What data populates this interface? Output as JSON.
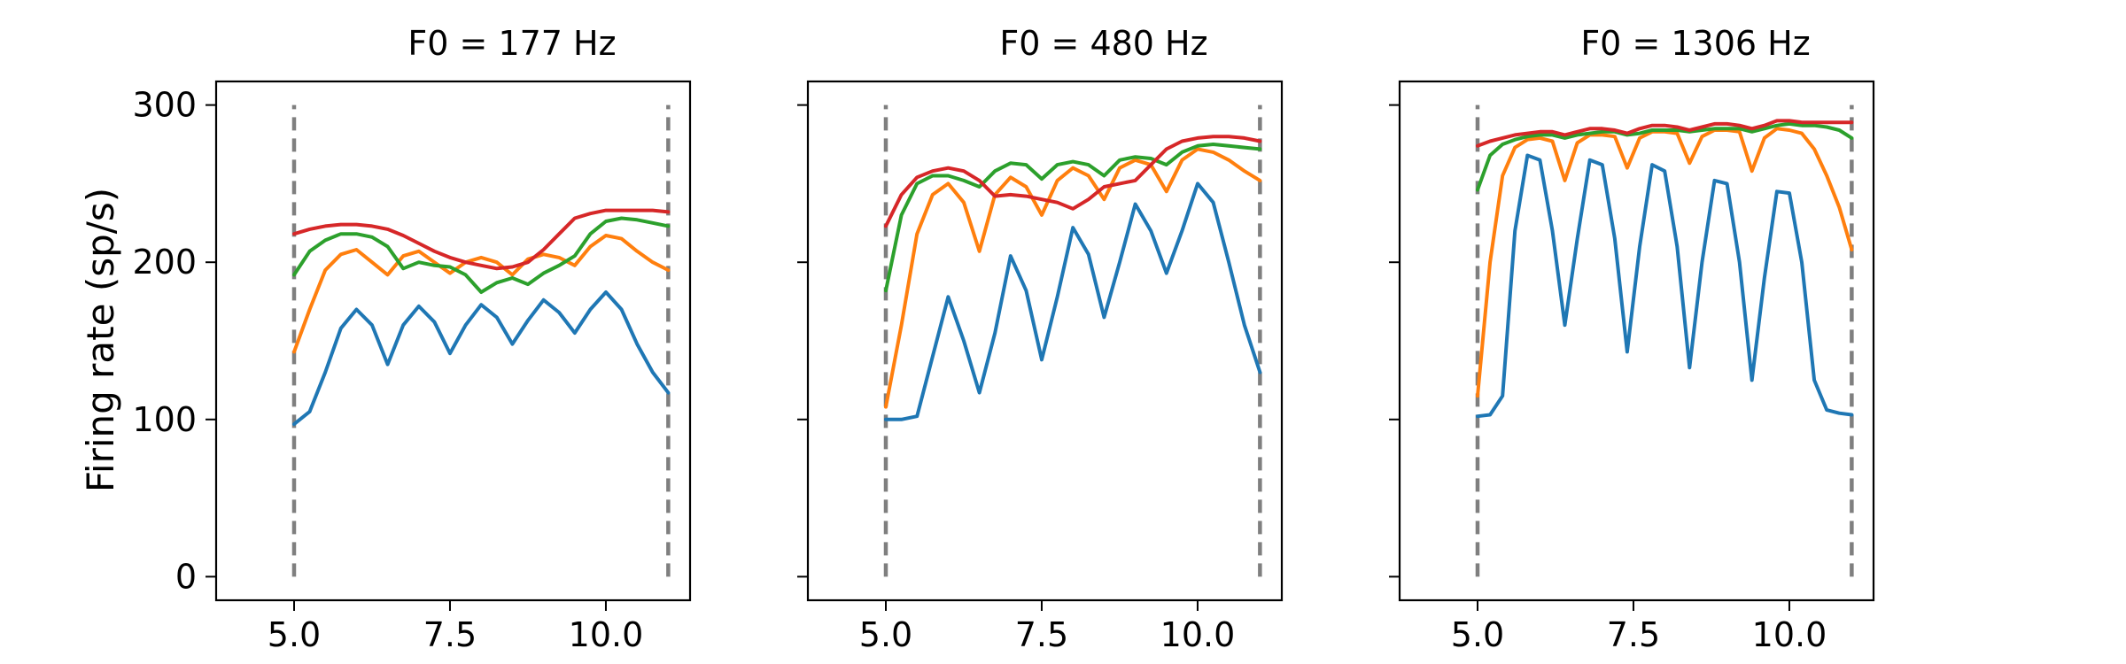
{
  "figure": {
    "ylabel": "Firing rate (sp/s)"
  },
  "chart_data": [
    {
      "type": "line",
      "title": "F0 = 177 Hz",
      "xlabel": "",
      "ylabel": "Firing rate (sp/s)",
      "xlim": [
        3.75,
        11.35
      ],
      "ylim": [
        -15,
        315
      ],
      "xticks": [
        5.0,
        7.5,
        10.0
      ],
      "xtick_labels": [
        "5.0",
        "7.5",
        "10.0"
      ],
      "yticks": [
        0,
        100,
        200,
        300
      ],
      "ytick_labels": [
        "0",
        "100",
        "200",
        "300"
      ],
      "show_ytick_labels": true,
      "grid": false,
      "vlines": {
        "x": [
          5.0,
          11.0
        ],
        "ymin": 0,
        "ymax": 300,
        "color": "#7f7f7f",
        "style": "dashed"
      },
      "series": [
        {
          "color": "#1f77b4",
          "x": [
            5.0,
            5.25,
            5.5,
            5.75,
            6.0,
            6.25,
            6.5,
            6.75,
            7.0,
            7.25,
            7.5,
            7.75,
            8.0,
            8.25,
            8.5,
            8.75,
            9.0,
            9.25,
            9.5,
            9.75,
            10.0,
            10.25,
            10.5,
            10.75,
            11.0
          ],
          "y": [
            97,
            105,
            130,
            158,
            170,
            160,
            135,
            160,
            172,
            162,
            142,
            160,
            173,
            165,
            148,
            163,
            176,
            168,
            155,
            170,
            181,
            170,
            148,
            130,
            117
          ]
        },
        {
          "color": "#ff7f0e",
          "x": [
            5.0,
            5.25,
            5.5,
            5.75,
            6.0,
            6.25,
            6.5,
            6.75,
            7.0,
            7.25,
            7.5,
            7.75,
            8.0,
            8.25,
            8.5,
            8.75,
            9.0,
            9.25,
            9.5,
            9.75,
            10.0,
            10.25,
            10.5,
            10.75,
            11.0
          ],
          "y": [
            143,
            170,
            195,
            205,
            208,
            200,
            192,
            204,
            207,
            200,
            193,
            200,
            203,
            200,
            192,
            202,
            205,
            203,
            198,
            210,
            217,
            215,
            207,
            200,
            195
          ]
        },
        {
          "color": "#2ca02c",
          "x": [
            5.0,
            5.25,
            5.5,
            5.75,
            6.0,
            6.25,
            6.5,
            6.75,
            7.0,
            7.25,
            7.5,
            7.75,
            8.0,
            8.25,
            8.5,
            8.75,
            9.0,
            9.25,
            9.5,
            9.75,
            10.0,
            10.25,
            10.5,
            10.75,
            11.0
          ],
          "y": [
            192,
            207,
            214,
            218,
            218,
            216,
            210,
            196,
            200,
            198,
            197,
            192,
            181,
            187,
            190,
            186,
            193,
            198,
            204,
            218,
            226,
            228,
            227,
            225,
            223
          ]
        },
        {
          "color": "#d62728",
          "x": [
            5.0,
            5.25,
            5.5,
            5.75,
            6.0,
            6.25,
            6.5,
            6.75,
            7.0,
            7.25,
            7.5,
            7.75,
            8.0,
            8.25,
            8.5,
            8.75,
            9.0,
            9.25,
            9.5,
            9.75,
            10.0,
            10.25,
            10.5,
            10.75,
            11.0
          ],
          "y": [
            218,
            221,
            223,
            224,
            224,
            223,
            221,
            217,
            212,
            207,
            203,
            200,
            198,
            196,
            197,
            200,
            208,
            218,
            228,
            231,
            233,
            233,
            233,
            233,
            232
          ]
        }
      ]
    },
    {
      "type": "line",
      "title": "F0 = 480 Hz",
      "xlabel": "",
      "ylabel": "",
      "xlim": [
        3.75,
        11.35
      ],
      "ylim": [
        -15,
        315
      ],
      "xticks": [
        5.0,
        7.5,
        10.0
      ],
      "xtick_labels": [
        "5.0",
        "7.5",
        "10.0"
      ],
      "yticks": [
        0,
        100,
        200,
        300
      ],
      "ytick_labels": [
        "",
        "",
        "",
        ""
      ],
      "show_ytick_labels": false,
      "grid": false,
      "vlines": {
        "x": [
          5.0,
          11.0
        ],
        "ymin": 0,
        "ymax": 300,
        "color": "#7f7f7f",
        "style": "dashed"
      },
      "series": [
        {
          "color": "#1f77b4",
          "x": [
            5.0,
            5.25,
            5.5,
            5.75,
            6.0,
            6.25,
            6.5,
            6.75,
            7.0,
            7.25,
            7.5,
            7.75,
            8.0,
            8.25,
            8.5,
            8.75,
            9.0,
            9.25,
            9.5,
            9.75,
            10.0,
            10.25,
            10.5,
            10.75,
            11.0
          ],
          "y": [
            100,
            100,
            102,
            140,
            178,
            150,
            117,
            155,
            204,
            182,
            138,
            178,
            222,
            205,
            165,
            200,
            237,
            220,
            193,
            220,
            250,
            238,
            200,
            160,
            130
          ]
        },
        {
          "color": "#ff7f0e",
          "x": [
            5.0,
            5.25,
            5.5,
            5.75,
            6.0,
            6.25,
            6.5,
            6.75,
            7.0,
            7.25,
            7.5,
            7.75,
            8.0,
            8.25,
            8.5,
            8.75,
            9.0,
            9.25,
            9.5,
            9.75,
            10.0,
            10.25,
            10.5,
            10.75,
            11.0
          ],
          "y": [
            108,
            160,
            218,
            243,
            250,
            238,
            207,
            243,
            254,
            248,
            230,
            252,
            260,
            255,
            240,
            260,
            265,
            262,
            245,
            265,
            272,
            270,
            265,
            258,
            252
          ]
        },
        {
          "color": "#2ca02c",
          "x": [
            5.0,
            5.25,
            5.5,
            5.75,
            6.0,
            6.25,
            6.5,
            6.75,
            7.0,
            7.25,
            7.5,
            7.75,
            8.0,
            8.25,
            8.5,
            8.75,
            9.0,
            9.25,
            9.5,
            9.75,
            10.0,
            10.25,
            10.5,
            10.75,
            11.0
          ],
          "y": [
            182,
            230,
            250,
            255,
            255,
            252,
            248,
            258,
            263,
            262,
            253,
            262,
            264,
            262,
            255,
            265,
            267,
            266,
            262,
            270,
            274,
            275,
            274,
            273,
            272
          ]
        },
        {
          "color": "#d62728",
          "x": [
            5.0,
            5.25,
            5.5,
            5.75,
            6.0,
            6.25,
            6.5,
            6.75,
            7.0,
            7.25,
            7.5,
            7.75,
            8.0,
            8.25,
            8.5,
            8.75,
            9.0,
            9.25,
            9.5,
            9.75,
            10.0,
            10.25,
            10.5,
            10.75,
            11.0
          ],
          "y": [
            223,
            243,
            254,
            258,
            260,
            258,
            252,
            242,
            243,
            242,
            240,
            238,
            234,
            240,
            248,
            250,
            252,
            262,
            272,
            277,
            279,
            280,
            280,
            279,
            277
          ]
        }
      ]
    },
    {
      "type": "line",
      "title": "F0 = 1306 Hz",
      "xlabel": "",
      "ylabel": "",
      "xlim": [
        3.75,
        11.35
      ],
      "ylim": [
        -15,
        315
      ],
      "xticks": [
        5.0,
        7.5,
        10.0
      ],
      "xtick_labels": [
        "5.0",
        "7.5",
        "10.0"
      ],
      "yticks": [
        0,
        100,
        200,
        300
      ],
      "ytick_labels": [
        "",
        "",
        "",
        ""
      ],
      "show_ytick_labels": false,
      "grid": false,
      "vlines": {
        "x": [
          5.0,
          11.0
        ],
        "ymin": 0,
        "ymax": 300,
        "color": "#7f7f7f",
        "style": "dashed"
      },
      "series": [
        {
          "color": "#1f77b4",
          "x": [
            5.0,
            5.2,
            5.4,
            5.6,
            5.8,
            6.0,
            6.2,
            6.4,
            6.6,
            6.8,
            7.0,
            7.2,
            7.4,
            7.6,
            7.8,
            8.0,
            8.2,
            8.4,
            8.6,
            8.8,
            9.0,
            9.2,
            9.4,
            9.6,
            9.8,
            10.0,
            10.2,
            10.4,
            10.6,
            10.8,
            11.0
          ],
          "y": [
            102,
            103,
            115,
            220,
            268,
            265,
            220,
            160,
            215,
            265,
            262,
            215,
            143,
            210,
            262,
            258,
            210,
            133,
            200,
            252,
            250,
            200,
            125,
            190,
            245,
            244,
            200,
            125,
            106,
            104,
            103
          ]
        },
        {
          "color": "#ff7f0e",
          "x": [
            5.0,
            5.2,
            5.4,
            5.6,
            5.8,
            6.0,
            6.2,
            6.4,
            6.6,
            6.8,
            7.0,
            7.2,
            7.4,
            7.6,
            7.8,
            8.0,
            8.2,
            8.4,
            8.6,
            8.8,
            9.0,
            9.2,
            9.4,
            9.6,
            9.8,
            10.0,
            10.2,
            10.4,
            10.6,
            10.8,
            11.0
          ],
          "y": [
            115,
            200,
            255,
            273,
            278,
            279,
            277,
            252,
            276,
            281,
            281,
            280,
            260,
            279,
            283,
            283,
            282,
            263,
            280,
            284,
            284,
            283,
            258,
            279,
            285,
            284,
            282,
            272,
            255,
            235,
            208
          ]
        },
        {
          "color": "#2ca02c",
          "x": [
            5.0,
            5.2,
            5.4,
            5.6,
            5.8,
            6.0,
            6.2,
            6.4,
            6.6,
            6.8,
            7.0,
            7.2,
            7.4,
            7.6,
            7.8,
            8.0,
            8.2,
            8.4,
            8.6,
            8.8,
            9.0,
            9.2,
            9.4,
            9.6,
            9.8,
            10.0,
            10.2,
            10.4,
            10.6,
            10.8,
            11.0
          ],
          "y": [
            246,
            268,
            275,
            278,
            280,
            281,
            281,
            279,
            281,
            282,
            283,
            283,
            281,
            282,
            284,
            284,
            284,
            283,
            284,
            285,
            285,
            285,
            283,
            285,
            287,
            288,
            287,
            287,
            286,
            284,
            279
          ]
        },
        {
          "color": "#d62728",
          "x": [
            5.0,
            5.2,
            5.4,
            5.6,
            5.8,
            6.0,
            6.2,
            6.4,
            6.6,
            6.8,
            7.0,
            7.2,
            7.4,
            7.6,
            7.8,
            8.0,
            8.2,
            8.4,
            8.6,
            8.8,
            9.0,
            9.2,
            9.4,
            9.6,
            9.8,
            10.0,
            10.2,
            10.4,
            10.6,
            10.8,
            11.0
          ],
          "y": [
            274,
            277,
            279,
            281,
            282,
            283,
            283,
            281,
            283,
            285,
            285,
            284,
            282,
            285,
            287,
            287,
            286,
            284,
            286,
            288,
            288,
            287,
            285,
            287,
            290,
            290,
            289,
            289,
            289,
            289,
            289
          ]
        }
      ]
    }
  ]
}
